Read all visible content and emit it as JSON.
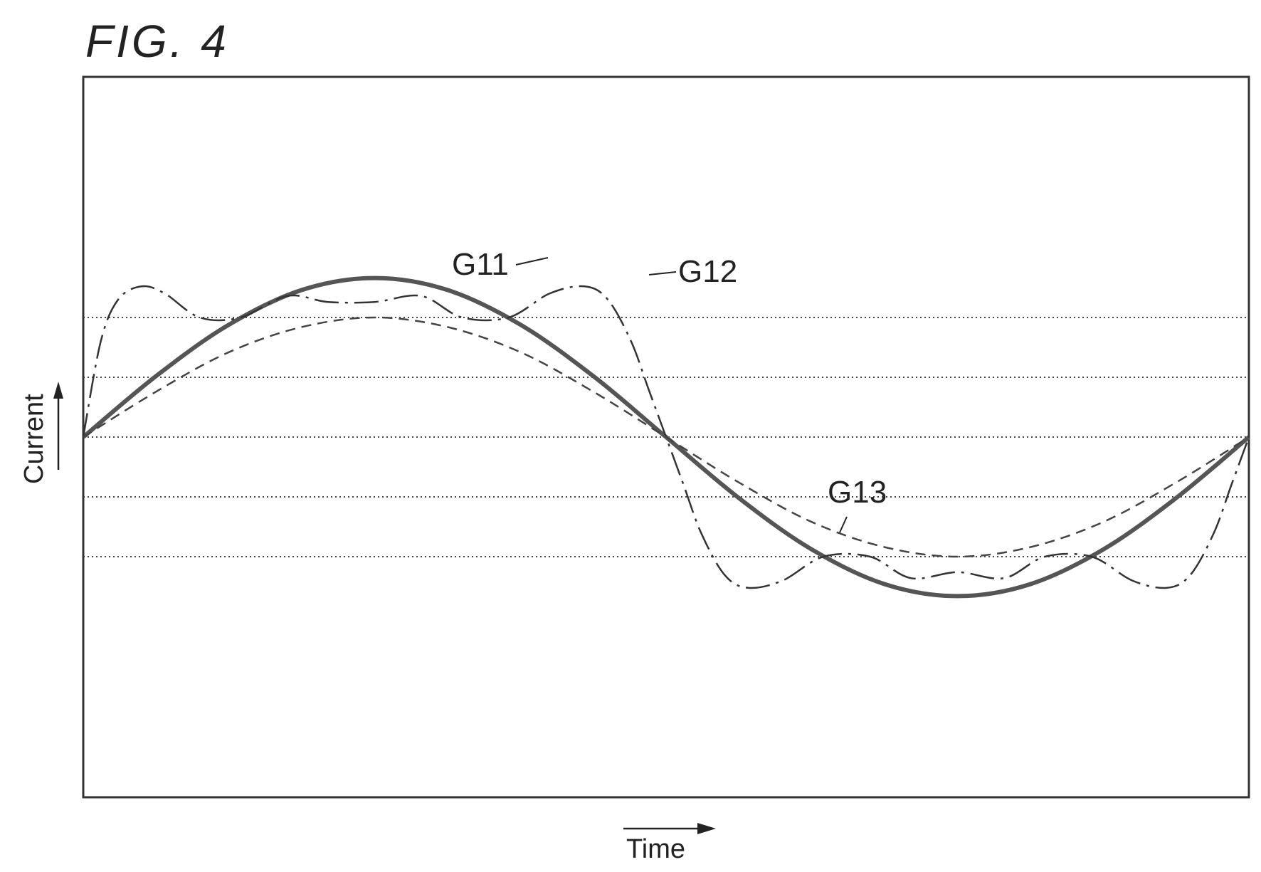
{
  "figure": {
    "title": "FIG. 4",
    "xlabel": "Time",
    "ylabel": "Current"
  },
  "chart_data": {
    "type": "line",
    "title": "FIG. 4",
    "xlabel": "Time",
    "ylabel": "Current",
    "x_domain": [
      0,
      2
    ],
    "ylim": [
      -1.35,
      1.35
    ],
    "grid_y": [
      -1,
      -0.5,
      0,
      0.5,
      1
    ],
    "grid": true,
    "tick_labels_shown": false,
    "series": [
      {
        "name": "G11",
        "style": "solid-thick",
        "color": "#555555",
        "x": [
          0,
          0.125,
          0.25,
          0.375,
          0.5,
          0.625,
          0.75,
          0.875,
          1.0,
          1.125,
          1.25,
          1.375,
          1.5,
          1.625,
          1.75,
          1.875,
          2.0
        ],
        "y": [
          0,
          0.51,
          0.94,
          1.23,
          1.33,
          1.23,
          0.94,
          0.51,
          0,
          -0.51,
          -0.94,
          -1.23,
          -1.33,
          -1.23,
          -0.94,
          -0.51,
          0
        ]
      },
      {
        "name": "G12",
        "style": "dash-dot",
        "color": "#333333",
        "x": [
          0,
          0.03,
          0.06,
          0.1,
          0.14,
          0.2,
          0.27,
          0.35,
          0.42,
          0.5,
          0.58,
          0.65,
          0.73,
          0.8,
          0.86,
          0.9,
          0.94,
          0.97,
          1.0,
          1.03,
          1.06,
          1.1,
          1.14,
          1.2,
          1.27,
          1.35,
          1.42,
          1.5,
          1.58,
          1.65,
          1.73,
          1.8,
          1.86,
          1.9,
          1.94,
          1.97,
          2.0
        ],
        "y": [
          0,
          0.8,
          1.15,
          1.26,
          1.2,
          1.0,
          1.0,
          1.18,
          1.13,
          1.13,
          1.18,
          1.0,
          1.0,
          1.2,
          1.26,
          1.15,
          0.8,
          0.4,
          0,
          -0.4,
          -0.8,
          -1.15,
          -1.26,
          -1.2,
          -1.0,
          -1.0,
          -1.18,
          -1.13,
          -1.18,
          -1.0,
          -1.0,
          -1.2,
          -1.26,
          -1.15,
          -0.8,
          -0.4,
          0
        ]
      },
      {
        "name": "G13",
        "style": "dashed",
        "color": "#444444",
        "x": [
          0,
          0.125,
          0.25,
          0.375,
          0.5,
          0.625,
          0.75,
          0.875,
          1.0,
          1.125,
          1.25,
          1.375,
          1.5,
          1.625,
          1.75,
          1.875,
          2.0
        ],
        "y": [
          0,
          0.38,
          0.71,
          0.92,
          1.0,
          0.92,
          0.71,
          0.38,
          0,
          -0.38,
          -0.71,
          -0.92,
          -1.0,
          -0.92,
          -0.71,
          -0.38,
          0
        ]
      }
    ]
  }
}
